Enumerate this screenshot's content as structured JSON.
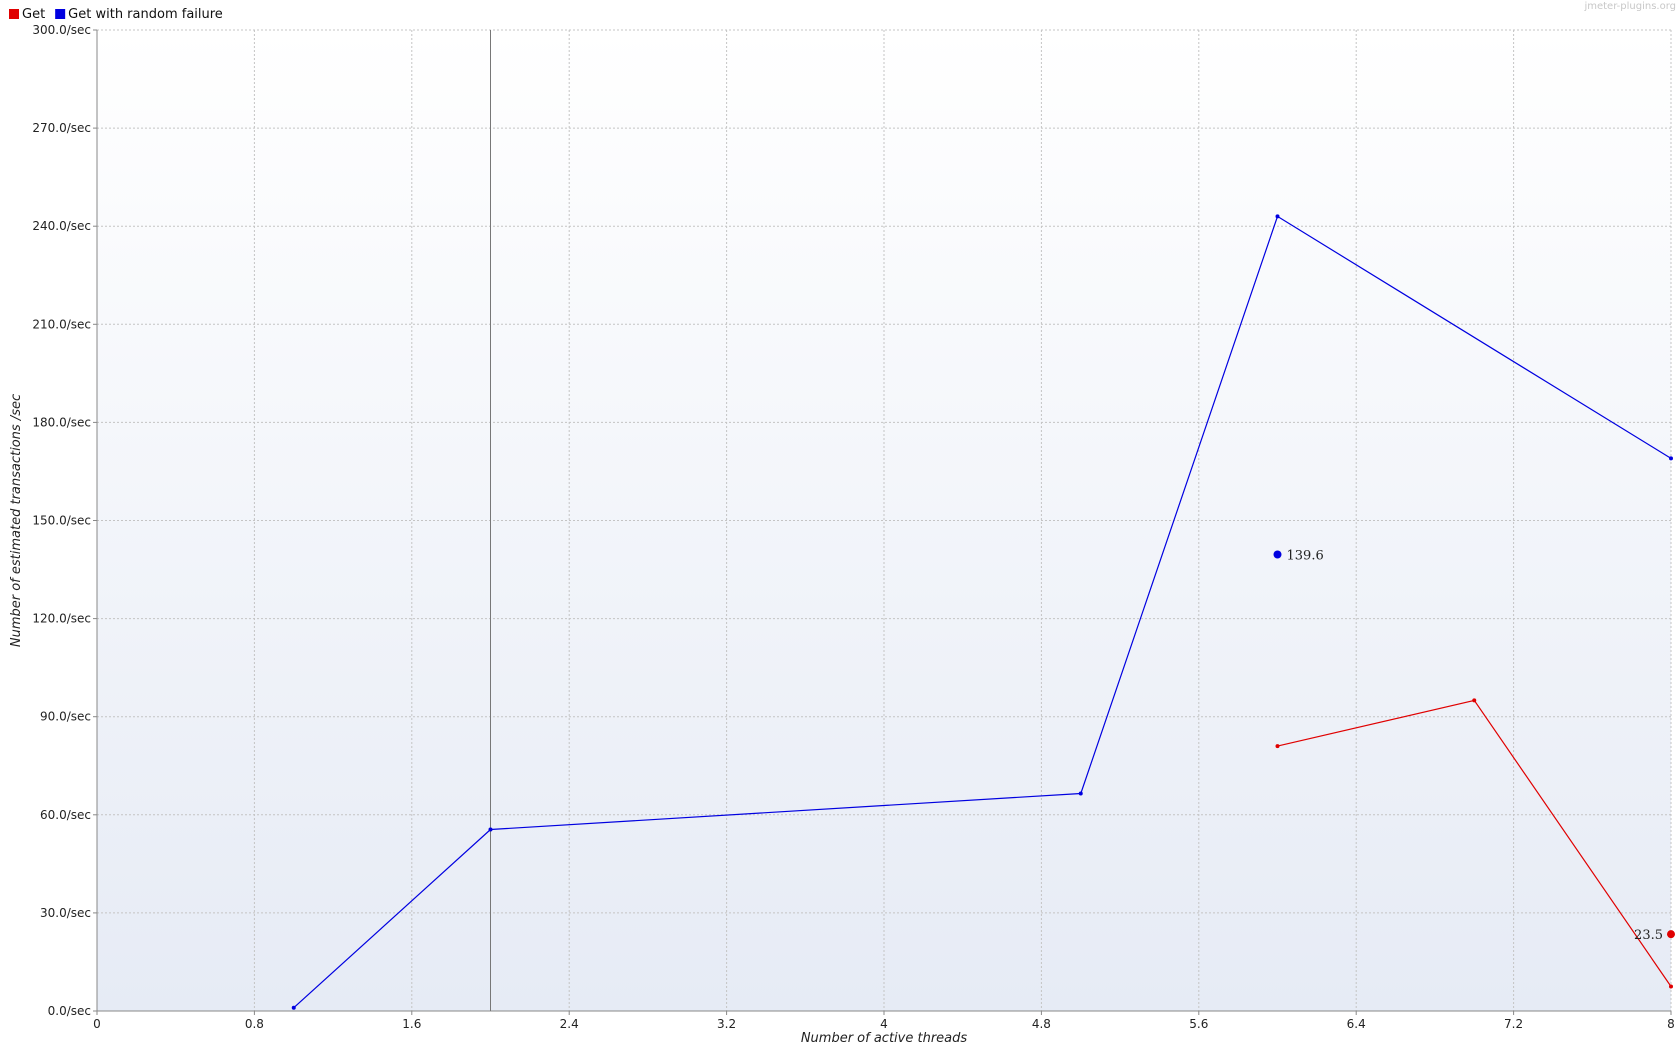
{
  "watermark": "jmeter-plugins.org",
  "legend": [
    {
      "label": "Get",
      "color": "#e00000"
    },
    {
      "label": "Get with random failure",
      "color": "#0000e0"
    }
  ],
  "chart_data": {
    "type": "line",
    "xlabel": "Number of active threads",
    "ylabel": "Number of estimated transactions /sec",
    "xlim": [
      0,
      8
    ],
    "ylim": [
      0,
      300
    ],
    "x_ticks": [
      0,
      0.8,
      1.6,
      2.4,
      3.2,
      4,
      4.8,
      5.6,
      6.4,
      7.2,
      8
    ],
    "x_tick_labels": [
      "0",
      "0.8",
      "1.6",
      "2.4",
      "3.2",
      "4",
      "4.8",
      "5.6",
      "6.4",
      "7.2",
      "8"
    ],
    "y_ticks": [
      0,
      30,
      60,
      90,
      120,
      150,
      180,
      210,
      240,
      270,
      300
    ],
    "y_tick_labels": [
      "0.0/sec",
      "30.0/sec",
      "60.0/sec",
      "90.0/sec",
      "120.0/sec",
      "150.0/sec",
      "180.0/sec",
      "210.0/sec",
      "240.0/sec",
      "270.0/sec",
      "300.0/sec"
    ],
    "grid": true,
    "legend_position": "top-left",
    "series": [
      {
        "name": "Get",
        "color": "#e00000",
        "x": [
          6,
          7,
          8
        ],
        "y": [
          81,
          95,
          7.5
        ],
        "average": {
          "x": 8,
          "y": 23.5,
          "label": "23.5"
        }
      },
      {
        "name": "Get with random failure",
        "color": "#0000e0",
        "x": [
          1,
          2,
          5,
          6,
          8
        ],
        "y": [
          1,
          55.5,
          66.5,
          243,
          169
        ],
        "average": {
          "x": 6,
          "y": 139.6,
          "label": "139.6"
        }
      }
    ],
    "marker_line_x": 2
  }
}
